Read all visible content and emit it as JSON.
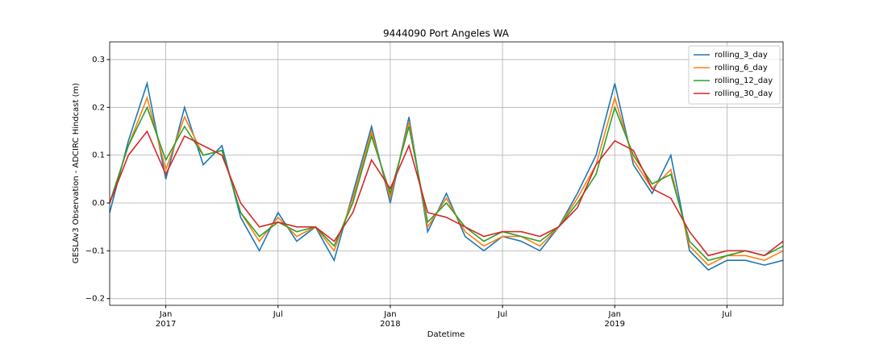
{
  "chart_data": {
    "type": "line",
    "title": "9444090 Port Angeles WA",
    "x_label": "Datetime",
    "y_label": "GESLAv3 Observation - ADCIRC Hindcast (m)",
    "x": [
      "2016-10",
      "2016-11",
      "2016-12",
      "2017-01",
      "2017-02",
      "2017-03",
      "2017-04",
      "2017-05",
      "2017-06",
      "2017-07",
      "2017-08",
      "2017-09",
      "2017-10",
      "2017-11",
      "2017-12",
      "2018-01",
      "2018-02",
      "2018-03",
      "2018-04",
      "2018-05",
      "2018-06",
      "2018-07",
      "2018-08",
      "2018-09",
      "2018-10",
      "2018-11",
      "2018-12",
      "2019-01",
      "2019-02",
      "2019-03",
      "2019-04",
      "2019-05",
      "2019-06",
      "2019-07",
      "2019-08",
      "2019-09",
      "2019-10"
    ],
    "series": [
      {
        "name": "rolling_3_day",
        "color": "#1f77b4",
        "values": [
          -0.02,
          0.13,
          0.25,
          0.05,
          0.2,
          0.08,
          0.12,
          -0.03,
          -0.1,
          -0.02,
          -0.08,
          -0.05,
          -0.12,
          0.02,
          0.16,
          0.0,
          0.18,
          -0.06,
          0.02,
          -0.07,
          -0.1,
          -0.07,
          -0.08,
          -0.1,
          -0.05,
          0.02,
          0.1,
          0.25,
          0.08,
          0.02,
          0.1,
          -0.1,
          -0.14,
          -0.12,
          -0.12,
          -0.13,
          -0.12
        ]
      },
      {
        "name": "rolling_6_day",
        "color": "#ff7f0e",
        "values": [
          0.0,
          0.12,
          0.22,
          0.07,
          0.18,
          0.1,
          0.11,
          -0.02,
          -0.08,
          -0.03,
          -0.07,
          -0.05,
          -0.1,
          0.01,
          0.15,
          0.01,
          0.17,
          -0.05,
          0.01,
          -0.06,
          -0.09,
          -0.07,
          -0.07,
          -0.09,
          -0.05,
          0.01,
          0.08,
          0.22,
          0.09,
          0.03,
          0.07,
          -0.09,
          -0.13,
          -0.11,
          -0.11,
          -0.12,
          -0.1
        ]
      },
      {
        "name": "rolling_12_day",
        "color": "#2ca02c",
        "values": [
          0.0,
          0.12,
          0.2,
          0.09,
          0.16,
          0.1,
          0.11,
          -0.02,
          -0.07,
          -0.04,
          -0.06,
          -0.05,
          -0.09,
          0.0,
          0.14,
          0.02,
          0.16,
          -0.04,
          0.0,
          -0.05,
          -0.08,
          -0.06,
          -0.07,
          -0.08,
          -0.05,
          0.0,
          0.06,
          0.2,
          0.1,
          0.04,
          0.06,
          -0.08,
          -0.12,
          -0.11,
          -0.1,
          -0.11,
          -0.09
        ]
      },
      {
        "name": "rolling_30_day",
        "color": "#d62728",
        "values": [
          0.0,
          0.1,
          0.15,
          0.06,
          0.14,
          0.12,
          0.1,
          0.0,
          -0.05,
          -0.04,
          -0.05,
          -0.05,
          -0.08,
          -0.02,
          0.09,
          0.03,
          0.12,
          -0.02,
          -0.03,
          -0.05,
          -0.07,
          -0.06,
          -0.06,
          -0.07,
          -0.05,
          -0.01,
          0.08,
          0.13,
          0.11,
          0.03,
          0.01,
          -0.06,
          -0.11,
          -0.1,
          -0.1,
          -0.11,
          -0.08
        ]
      }
    ],
    "xlim": [
      "2016-10",
      "2019-10"
    ],
    "xticks": [
      {
        "value": "2017-01",
        "label": "Jan\n2017"
      },
      {
        "value": "2017-07",
        "label": "Jul"
      },
      {
        "value": "2018-01",
        "label": "Jan\n2018"
      },
      {
        "value": "2018-07",
        "label": "Jul"
      },
      {
        "value": "2019-01",
        "label": "Jan\n2019"
      },
      {
        "value": "2019-07",
        "label": "Jul"
      }
    ],
    "ylim": [
      -0.214,
      0.337
    ],
    "yticks": [
      {
        "value": -0.2,
        "label": "−0.2"
      },
      {
        "value": -0.1,
        "label": "−0.1"
      },
      {
        "value": 0,
        "label": "0.0"
      },
      0.1,
      0.2,
      0.3
    ],
    "grid": true,
    "legend": "upper right"
  }
}
